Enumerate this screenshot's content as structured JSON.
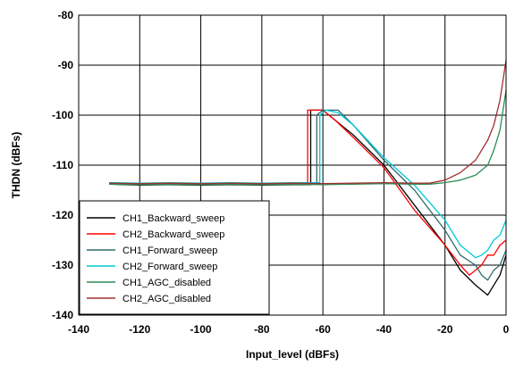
{
  "chart_data": {
    "type": "line",
    "xlabel": "Input_level (dBFs)",
    "ylabel": "THDN (dBFs)",
    "xlim": [
      -140,
      0
    ],
    "ylim": [
      -140,
      -80
    ],
    "xticks": [
      -140,
      -120,
      -100,
      -80,
      -60,
      -40,
      -20,
      0
    ],
    "yticks": [
      -140,
      -130,
      -120,
      -110,
      -100,
      -90,
      -80
    ],
    "xtick_labels": [
      "-140",
      "-120",
      "-100",
      "-80",
      "-60",
      "-40",
      "-20",
      "0"
    ],
    "ytick_labels": [
      "-140",
      "-130",
      "-120",
      "-110",
      "-100",
      "-90",
      "-80"
    ],
    "grid": true,
    "legend_position": "bottom-left",
    "series": [
      {
        "name": "CH1_Backward_sweep",
        "color": "#000000",
        "points": [
          [
            -130,
            -113.8
          ],
          [
            -120,
            -114
          ],
          [
            -110,
            -113.9
          ],
          [
            -100,
            -114
          ],
          [
            -90,
            -113.9
          ],
          [
            -80,
            -114
          ],
          [
            -70,
            -113.9
          ],
          [
            -64,
            -113.9
          ],
          [
            -64,
            -99
          ],
          [
            -60,
            -99
          ],
          [
            -56,
            -101
          ],
          [
            -50,
            -104
          ],
          [
            -40,
            -110
          ],
          [
            -30,
            -118
          ],
          [
            -20,
            -126
          ],
          [
            -15,
            -131
          ],
          [
            -10,
            -134
          ],
          [
            -8,
            -135
          ],
          [
            -6,
            -136
          ],
          [
            -4,
            -134
          ],
          [
            -2,
            -132
          ],
          [
            0,
            -128
          ]
        ]
      },
      {
        "name": "CH2_Backward_sweep",
        "color": "#ff0000",
        "points": [
          [
            -130,
            -113.6
          ],
          [
            -120,
            -113.8
          ],
          [
            -110,
            -113.7
          ],
          [
            -100,
            -113.8
          ],
          [
            -90,
            -113.7
          ],
          [
            -80,
            -113.8
          ],
          [
            -70,
            -113.7
          ],
          [
            -65,
            -113.7
          ],
          [
            -65,
            -99
          ],
          [
            -60,
            -99
          ],
          [
            -56,
            -101
          ],
          [
            -50,
            -104.5
          ],
          [
            -40,
            -110.5
          ],
          [
            -30,
            -119
          ],
          [
            -20,
            -126
          ],
          [
            -15,
            -130
          ],
          [
            -12,
            -132
          ],
          [
            -10,
            -131
          ],
          [
            -8,
            -130
          ],
          [
            -6,
            -128
          ],
          [
            -4,
            -128
          ],
          [
            -2,
            -126
          ],
          [
            0,
            -125
          ]
        ]
      },
      {
        "name": "CH1_Forward_sweep",
        "color": "#2f6b6b",
        "points": [
          [
            -130,
            -113.7
          ],
          [
            -120,
            -113.8
          ],
          [
            -110,
            -113.9
          ],
          [
            -100,
            -113.7
          ],
          [
            -90,
            -113.8
          ],
          [
            -80,
            -113.9
          ],
          [
            -70,
            -113.8
          ],
          [
            -62,
            -113.8
          ],
          [
            -62,
            -100
          ],
          [
            -60,
            -99
          ],
          [
            -55,
            -99
          ],
          [
            -50,
            -102
          ],
          [
            -40,
            -109
          ],
          [
            -30,
            -115
          ],
          [
            -20,
            -123
          ],
          [
            -15,
            -128
          ],
          [
            -10,
            -130
          ],
          [
            -8,
            -132
          ],
          [
            -6,
            -133
          ],
          [
            -4,
            -131
          ],
          [
            -2,
            -130
          ],
          [
            0,
            -127
          ]
        ]
      },
      {
        "name": "CH2_Forward_sweep",
        "color": "#00c8d8",
        "points": [
          [
            -130,
            -113.5
          ],
          [
            -120,
            -113.6
          ],
          [
            -110,
            -113.5
          ],
          [
            -100,
            -113.6
          ],
          [
            -90,
            -113.5
          ],
          [
            -80,
            -113.6
          ],
          [
            -70,
            -113.5
          ],
          [
            -61,
            -113.5
          ],
          [
            -61,
            -100
          ],
          [
            -59,
            -99
          ],
          [
            -55,
            -99.5
          ],
          [
            -50,
            -102
          ],
          [
            -40,
            -108.5
          ],
          [
            -30,
            -114
          ],
          [
            -20,
            -121
          ],
          [
            -15,
            -126
          ],
          [
            -10,
            -128.5
          ],
          [
            -8,
            -128
          ],
          [
            -6,
            -127
          ],
          [
            -4,
            -125
          ],
          [
            -2,
            -124
          ],
          [
            0,
            -121
          ]
        ]
      },
      {
        "name": "CH1_AGC_disabled",
        "color": "#2e8b57",
        "points": [
          [
            -130,
            -113.8
          ],
          [
            -120,
            -113.9
          ],
          [
            -110,
            -113.8
          ],
          [
            -100,
            -113.9
          ],
          [
            -90,
            -113.8
          ],
          [
            -80,
            -113.9
          ],
          [
            -70,
            -113.8
          ],
          [
            -60,
            -113.9
          ],
          [
            -50,
            -113.8
          ],
          [
            -40,
            -113.7
          ],
          [
            -30,
            -113.8
          ],
          [
            -25,
            -113.8
          ],
          [
            -20,
            -113.5
          ],
          [
            -15,
            -113
          ],
          [
            -10,
            -112
          ],
          [
            -6,
            -110
          ],
          [
            -4,
            -107
          ],
          [
            -2,
            -103
          ],
          [
            0,
            -95
          ]
        ]
      },
      {
        "name": "CH2_AGC_disabled",
        "color": "#a03030",
        "points": [
          [
            -130,
            -113.6
          ],
          [
            -120,
            -113.7
          ],
          [
            -110,
            -113.6
          ],
          [
            -100,
            -113.7
          ],
          [
            -90,
            -113.6
          ],
          [
            -80,
            -113.7
          ],
          [
            -70,
            -113.6
          ],
          [
            -60,
            -113.7
          ],
          [
            -50,
            -113.6
          ],
          [
            -40,
            -113.5
          ],
          [
            -30,
            -113.6
          ],
          [
            -25,
            -113.6
          ],
          [
            -20,
            -113
          ],
          [
            -15,
            -111.5
          ],
          [
            -10,
            -109
          ],
          [
            -6,
            -105
          ],
          [
            -4,
            -102
          ],
          [
            -2,
            -97
          ],
          [
            0,
            -89
          ]
        ]
      }
    ]
  }
}
